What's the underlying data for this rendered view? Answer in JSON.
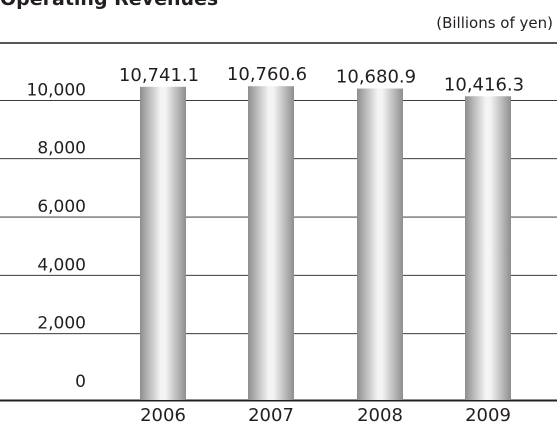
{
  "chart_data": {
    "type": "bar",
    "title": "Operating Revenues",
    "unit": "(Billions of yen)",
    "categories": [
      "2006",
      "2007",
      "2008",
      "2009"
    ],
    "values": [
      10741.1,
      10760.6,
      10680.9,
      10416.3
    ],
    "value_labels": [
      "10,741.1",
      "10,760.6",
      "10,680.9",
      "10,416.3"
    ],
    "y_ticks": [
      "0",
      "2,000",
      "4,000",
      "6,000",
      "8,000",
      "10,000"
    ],
    "ylim": [
      0,
      11000
    ],
    "grid": true,
    "legend": "none",
    "colors": {
      "bar_edge": "#9a9a9a",
      "bar_light": "#f2f2f2",
      "axis": "#231f20",
      "grid": "#231f20"
    }
  }
}
